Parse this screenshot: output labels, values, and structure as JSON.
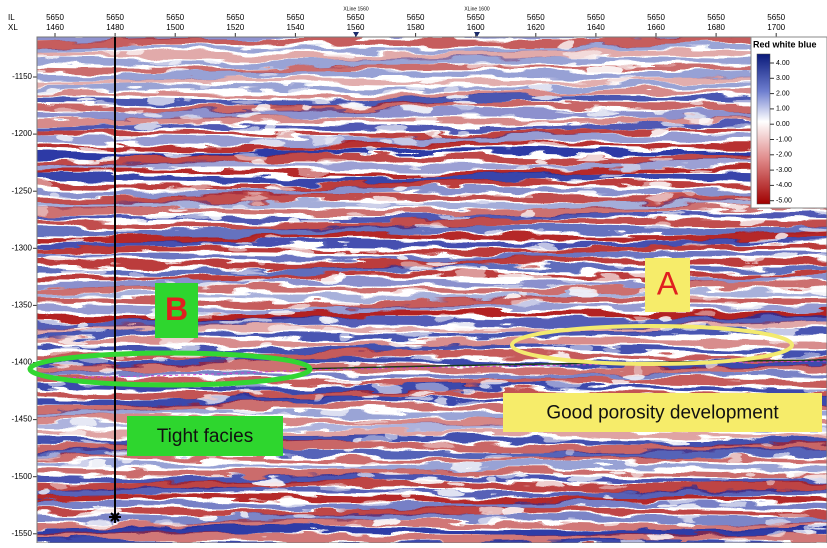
{
  "header": {
    "row_labels": [
      "IL",
      "XL"
    ],
    "columns": [
      {
        "il": "5650",
        "xl": "1460"
      },
      {
        "il": "5650",
        "xl": "1480"
      },
      {
        "il": "5650",
        "xl": "1500"
      },
      {
        "il": "5650",
        "xl": "1520"
      },
      {
        "il": "5650",
        "xl": "1540"
      },
      {
        "il": "5650",
        "xl": "1560"
      },
      {
        "il": "5650",
        "xl": "1580"
      },
      {
        "il": "5650",
        "xl": "1600"
      },
      {
        "il": "5650",
        "xl": "1620"
      },
      {
        "il": "5650",
        "xl": "1640"
      },
      {
        "il": "5650",
        "xl": "1660"
      },
      {
        "il": "5650",
        "xl": "1680"
      },
      {
        "il": "5650",
        "xl": "1700"
      }
    ],
    "markers": [
      "XLine 1560",
      "XLine 1600"
    ]
  },
  "y_axis": [
    "-1150",
    "-1200",
    "-1250",
    "-1300",
    "-1350",
    "-1400",
    "-1450",
    "-1500",
    "-1550"
  ],
  "colorbar": {
    "title": "Red white blue",
    "labels": [
      "4.00",
      "3.00",
      "2.00",
      "1.00",
      "0.00",
      "-1.00",
      "-2.00",
      "-3.00",
      "-4.00",
      "-5.00"
    ]
  },
  "annotations": {
    "a": "A",
    "b": "B",
    "tight": "Tight facies",
    "porosity": "Good porosity development"
  }
}
